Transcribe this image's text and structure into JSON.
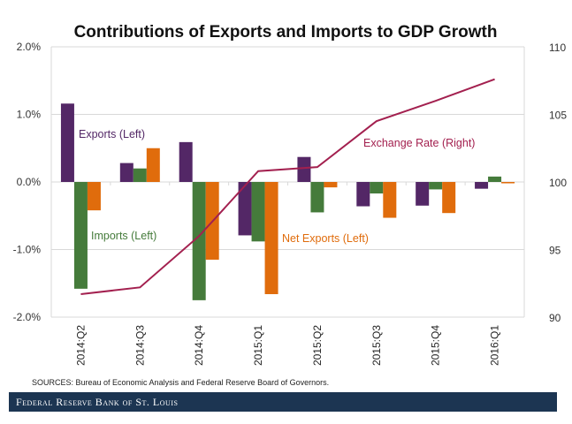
{
  "chart_data": {
    "type": "bar+line",
    "title": "Contributions of Exports and Imports to GDP Growth",
    "categories": [
      "2014:Q2",
      "2014:Q3",
      "2014:Q4",
      "2015:Q1",
      "2015:Q2",
      "2015:Q3",
      "2015:Q4",
      "2016:Q1"
    ],
    "series": [
      {
        "name": "Exports (Left)",
        "type": "bar",
        "axis": "left",
        "color": "#532766",
        "values": [
          1.16,
          0.28,
          0.59,
          -0.79,
          0.37,
          -0.36,
          -0.35,
          -0.1
        ]
      },
      {
        "name": "Imports (Left)",
        "type": "bar",
        "axis": "left",
        "color": "#457b3b",
        "values": [
          -1.58,
          0.2,
          -1.75,
          -0.88,
          -0.45,
          -0.17,
          -0.11,
          0.08
        ]
      },
      {
        "name": "Net Exports (Left)",
        "type": "bar",
        "axis": "left",
        "color": "#e06c0c",
        "values": [
          -0.42,
          0.5,
          -1.15,
          -1.66,
          -0.08,
          -0.53,
          -0.46,
          -0.02
        ]
      },
      {
        "name": "Exchange Rate (Right)",
        "type": "line",
        "axis": "right",
        "color": "#a3204f",
        "values": [
          91.7,
          92.2,
          96.0,
          100.8,
          101.1,
          104.5,
          106.0,
          107.6
        ]
      }
    ],
    "left_axis": {
      "ylim": [
        -2.0,
        2.0
      ],
      "ticks": [
        "2.0%",
        "1.0%",
        "0.0%",
        "-1.0%",
        "-2.0%"
      ],
      "tick_values": [
        2,
        1,
        0,
        -1,
        -2
      ]
    },
    "right_axis": {
      "ylim": [
        90,
        110
      ],
      "ticks": [
        "110",
        "105",
        "100",
        "95",
        "90"
      ],
      "tick_values": [
        110,
        105,
        100,
        95,
        90
      ]
    },
    "grid": true,
    "legend": "inline labels"
  },
  "sources": "SOURCES: Bureau of Economic Analysis and Federal Reserve Board of Governors.",
  "footer": "Federal Reserve Bank of St. Louis"
}
